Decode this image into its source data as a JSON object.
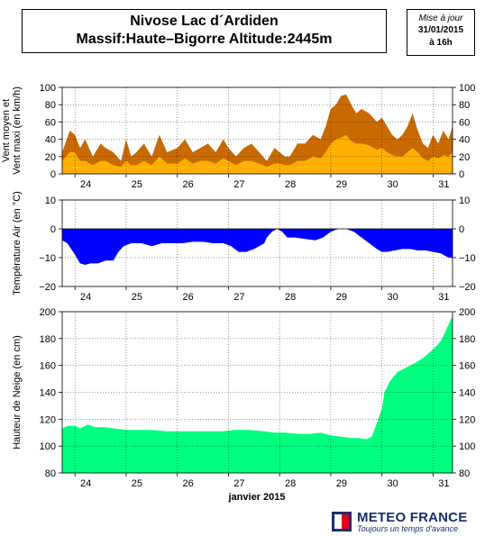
{
  "header": {
    "title_line1": "Nivose Lac d´Ardiden",
    "title_line2": "Massif:Haute–Bigorre Altitude:2445m",
    "stamp_label": "Mise à jour",
    "stamp_date": "31/01/2015",
    "stamp_time": "à 16h"
  },
  "logo": {
    "name": "METEO FRANCE",
    "tagline": "Toujours un temps d'avance"
  },
  "chart_data": [
    {
      "type": "area",
      "ylabel": "Vent moyen et Vent maxi (en km/h)",
      "ylim": [
        0,
        100
      ],
      "yticks": [
        "0",
        "20",
        "40",
        "60",
        "80",
        "100"
      ],
      "xlim": [
        23.75,
        31.38
      ],
      "xticks": [
        "24",
        "25",
        "26",
        "27",
        "28",
        "29",
        "30",
        "31"
      ],
      "grid": true,
      "colors": {
        "max": "#c96a00",
        "mean": "#ffb000"
      },
      "series": [
        {
          "key": "max",
          "x": [
            23.75,
            23.9,
            24.0,
            24.1,
            24.2,
            24.35,
            24.5,
            24.6,
            24.75,
            24.9,
            25.0,
            25.1,
            25.2,
            25.35,
            25.5,
            25.65,
            25.8,
            26.0,
            26.15,
            26.3,
            26.45,
            26.6,
            26.75,
            26.9,
            27.0,
            27.15,
            27.3,
            27.45,
            27.6,
            27.75,
            27.9,
            28.0,
            28.1,
            28.2,
            28.35,
            28.5,
            28.65,
            28.8,
            28.9,
            29.0,
            29.1,
            29.2,
            29.3,
            29.4,
            29.5,
            29.6,
            29.75,
            29.9,
            30.0,
            30.1,
            30.2,
            30.3,
            30.4,
            30.5,
            30.6,
            30.7,
            30.8,
            30.9,
            31.0,
            31.1,
            31.2,
            31.3,
            31.38
          ],
          "values": [
            25,
            50,
            45,
            30,
            40,
            20,
            35,
            30,
            25,
            15,
            40,
            20,
            25,
            35,
            20,
            45,
            25,
            30,
            40,
            25,
            30,
            35,
            25,
            40,
            30,
            20,
            30,
            35,
            25,
            15,
            30,
            25,
            20,
            20,
            35,
            35,
            45,
            40,
            55,
            75,
            80,
            90,
            92,
            80,
            70,
            75,
            70,
            60,
            65,
            55,
            45,
            40,
            45,
            55,
            70,
            50,
            35,
            30,
            45,
            35,
            50,
            40,
            55
          ]
        },
        {
          "key": "mean",
          "x": [
            23.75,
            23.9,
            24.0,
            24.1,
            24.2,
            24.35,
            24.5,
            24.6,
            24.75,
            24.9,
            25.0,
            25.1,
            25.2,
            25.35,
            25.5,
            25.65,
            25.8,
            26.0,
            26.15,
            26.3,
            26.45,
            26.6,
            26.75,
            26.9,
            27.0,
            27.15,
            27.3,
            27.45,
            27.6,
            27.75,
            27.9,
            28.0,
            28.1,
            28.2,
            28.35,
            28.5,
            28.65,
            28.8,
            28.9,
            29.0,
            29.1,
            29.2,
            29.3,
            29.4,
            29.5,
            29.6,
            29.75,
            29.9,
            30.0,
            30.1,
            30.2,
            30.3,
            30.4,
            30.5,
            30.6,
            30.7,
            30.8,
            30.9,
            31.0,
            31.1,
            31.2,
            31.3,
            31.38
          ],
          "values": [
            15,
            25,
            25,
            15,
            15,
            10,
            15,
            15,
            10,
            8,
            15,
            10,
            10,
            15,
            10,
            20,
            12,
            12,
            18,
            12,
            15,
            15,
            12,
            18,
            15,
            10,
            15,
            15,
            12,
            8,
            12,
            12,
            10,
            10,
            15,
            15,
            20,
            18,
            25,
            35,
            40,
            42,
            45,
            38,
            35,
            35,
            33,
            28,
            30,
            25,
            22,
            20,
            20,
            25,
            30,
            25,
            18,
            15,
            20,
            18,
            22,
            20,
            25
          ]
        }
      ]
    },
    {
      "type": "area",
      "ylabel": "Température Air (en °C)",
      "ylim": [
        -20,
        10
      ],
      "yticks": [
        "−20",
        "−10",
        "0",
        "10"
      ],
      "xlim": [
        23.75,
        31.38
      ],
      "xticks": [
        "24",
        "25",
        "26",
        "27",
        "28",
        "29",
        "30",
        "31"
      ],
      "grid": true,
      "colors": {
        "fill": "#0000ff"
      },
      "series": [
        {
          "key": "temp",
          "x": [
            23.75,
            23.85,
            24.0,
            24.1,
            24.2,
            24.3,
            24.45,
            24.6,
            24.75,
            24.85,
            24.95,
            25.1,
            25.3,
            25.5,
            25.7,
            25.9,
            26.1,
            26.3,
            26.5,
            26.7,
            26.9,
            27.05,
            27.2,
            27.35,
            27.5,
            27.6,
            27.7,
            27.75,
            27.85,
            27.95,
            28.05,
            28.15,
            28.3,
            28.5,
            28.7,
            28.85,
            29.0,
            29.15,
            29.3,
            29.45,
            29.6,
            29.75,
            29.9,
            30.0,
            30.1,
            30.25,
            30.4,
            30.55,
            30.7,
            30.85,
            31.0,
            31.15,
            31.3,
            31.38
          ],
          "values": [
            -4,
            -5,
            -9,
            -12,
            -12.5,
            -12,
            -12,
            -11,
            -11,
            -8,
            -6,
            -5,
            -5,
            -6,
            -5,
            -5,
            -5,
            -4.5,
            -4.5,
            -5,
            -5,
            -6,
            -8,
            -8,
            -7,
            -6,
            -5,
            -3,
            -1,
            0,
            -1,
            -3,
            -3,
            -3.5,
            -4,
            -3,
            -1,
            0,
            0,
            -1,
            -3,
            -5,
            -7,
            -8,
            -8,
            -7.5,
            -7,
            -7,
            -7.5,
            -7.5,
            -8,
            -8.5,
            -10,
            -10
          ]
        }
      ]
    },
    {
      "type": "area",
      "ylabel": "Hauteur de Neige (en cm)",
      "xlabel": "janvier 2015",
      "ylim": [
        80,
        200
      ],
      "yticks": [
        "80",
        "100",
        "120",
        "140",
        "160",
        "180",
        "200"
      ],
      "xlim": [
        23.75,
        31.38
      ],
      "xticks": [
        "24",
        "25",
        "26",
        "27",
        "28",
        "29",
        "30",
        "31"
      ],
      "grid": true,
      "colors": {
        "fill": "#00ff7f"
      },
      "series": [
        {
          "key": "snow",
          "x": [
            23.75,
            23.85,
            24.0,
            24.1,
            24.25,
            24.4,
            24.6,
            24.8,
            25.0,
            25.2,
            25.5,
            25.8,
            26.0,
            26.3,
            26.6,
            26.9,
            27.1,
            27.4,
            27.7,
            27.9,
            28.1,
            28.4,
            28.6,
            28.8,
            29.0,
            29.2,
            29.4,
            29.55,
            29.7,
            29.8,
            29.9,
            30.0,
            30.05,
            30.15,
            30.3,
            30.45,
            30.55,
            30.7,
            30.85,
            31.0,
            31.15,
            31.25,
            31.38
          ],
          "values": [
            113,
            115,
            115,
            113,
            116,
            114,
            114,
            113,
            112,
            112,
            112,
            111,
            111,
            111,
            111,
            111,
            112,
            112,
            111,
            110,
            110,
            109,
            109,
            110,
            108,
            107,
            106,
            106,
            105,
            107,
            117,
            128,
            140,
            148,
            155,
            158,
            160,
            163,
            167,
            172,
            178,
            186,
            197
          ]
        }
      ]
    }
  ]
}
